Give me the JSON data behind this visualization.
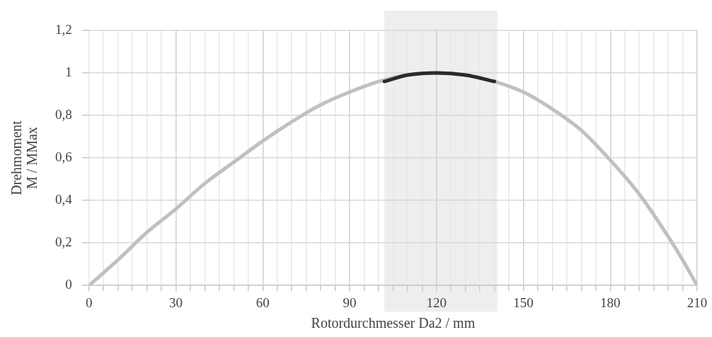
{
  "chart_data": {
    "type": "line",
    "xlabel": "Rotordurchmesser Da2 / mm",
    "ylabel": "Drehmoment\nM / MMax",
    "x": [
      0,
      10,
      20,
      30,
      40,
      50,
      60,
      70,
      80,
      90,
      100,
      110,
      120,
      130,
      140,
      150,
      160,
      170,
      180,
      190,
      200,
      205,
      210
    ],
    "series": [
      {
        "color": "#c0c0c0",
        "values": [
          0,
          0.12,
          0.25,
          0.36,
          0.48,
          0.58,
          0.68,
          0.77,
          0.85,
          0.91,
          0.96,
          0.99,
          1.0,
          0.99,
          0.96,
          0.91,
          0.83,
          0.73,
          0.59,
          0.43,
          0.23,
          0.12,
          0
        ]
      },
      {
        "color": "#2a2a2a",
        "x": [
          102,
          110,
          120,
          130,
          140
        ],
        "values": [
          0.96,
          0.99,
          1.0,
          0.99,
          0.96
        ]
      }
    ],
    "bands": [
      {
        "axis": "x",
        "from": 102,
        "to": 141,
        "color": "#eeeeee"
      }
    ],
    "xlim": [
      0,
      210
    ],
    "xticks": [
      0,
      {
        "value": 5,
        "label": null
      },
      {
        "value": 10,
        "label": null
      },
      {
        "value": 15,
        "label": null
      },
      {
        "value": 20,
        "label": null
      },
      {
        "value": 25,
        "label": null
      },
      30,
      {
        "value": 35,
        "label": null
      },
      {
        "value": 40,
        "label": null
      },
      {
        "value": 45,
        "label": null
      },
      {
        "value": 50,
        "label": null
      },
      {
        "value": 55,
        "label": null
      },
      60,
      {
        "value": 65,
        "label": null
      },
      {
        "value": 70,
        "label": null
      },
      {
        "value": 75,
        "label": null
      },
      {
        "value": 80,
        "label": null
      },
      {
        "value": 85,
        "label": null
      },
      90,
      {
        "value": 95,
        "label": null
      },
      {
        "value": 100,
        "label": null
      },
      {
        "value": 105,
        "label": null
      },
      {
        "value": 110,
        "label": null
      },
      {
        "value": 115,
        "label": null
      },
      120,
      {
        "value": 125,
        "label": null
      },
      {
        "value": 130,
        "label": null
      },
      {
        "value": 135,
        "label": null
      },
      {
        "value": 140,
        "label": null
      },
      {
        "value": 145,
        "label": null
      },
      150,
      {
        "value": 155,
        "label": null
      },
      {
        "value": 160,
        "label": null
      },
      {
        "value": 165,
        "label": null
      },
      {
        "value": 170,
        "label": null
      },
      {
        "value": 175,
        "label": null
      },
      180,
      {
        "value": 185,
        "label": null
      },
      {
        "value": 190,
        "label": null
      },
      {
        "value": 195,
        "label": null
      },
      {
        "value": 200,
        "label": null
      },
      {
        "value": 205,
        "label": null
      },
      210
    ],
    "ylim": [
      0,
      1.2
    ],
    "yticks": [
      0,
      {
        "value": 0.2,
        "label": "0,2"
      },
      {
        "value": 0.4,
        "label": "0,4"
      },
      {
        "value": 0.6,
        "label": "0,6"
      },
      {
        "value": 0.8,
        "label": "0,8"
      },
      1,
      {
        "value": 1.2,
        "label": "1,2"
      }
    ],
    "grid": true,
    "legend": false,
    "marker": "none",
    "line_style": "solid"
  }
}
